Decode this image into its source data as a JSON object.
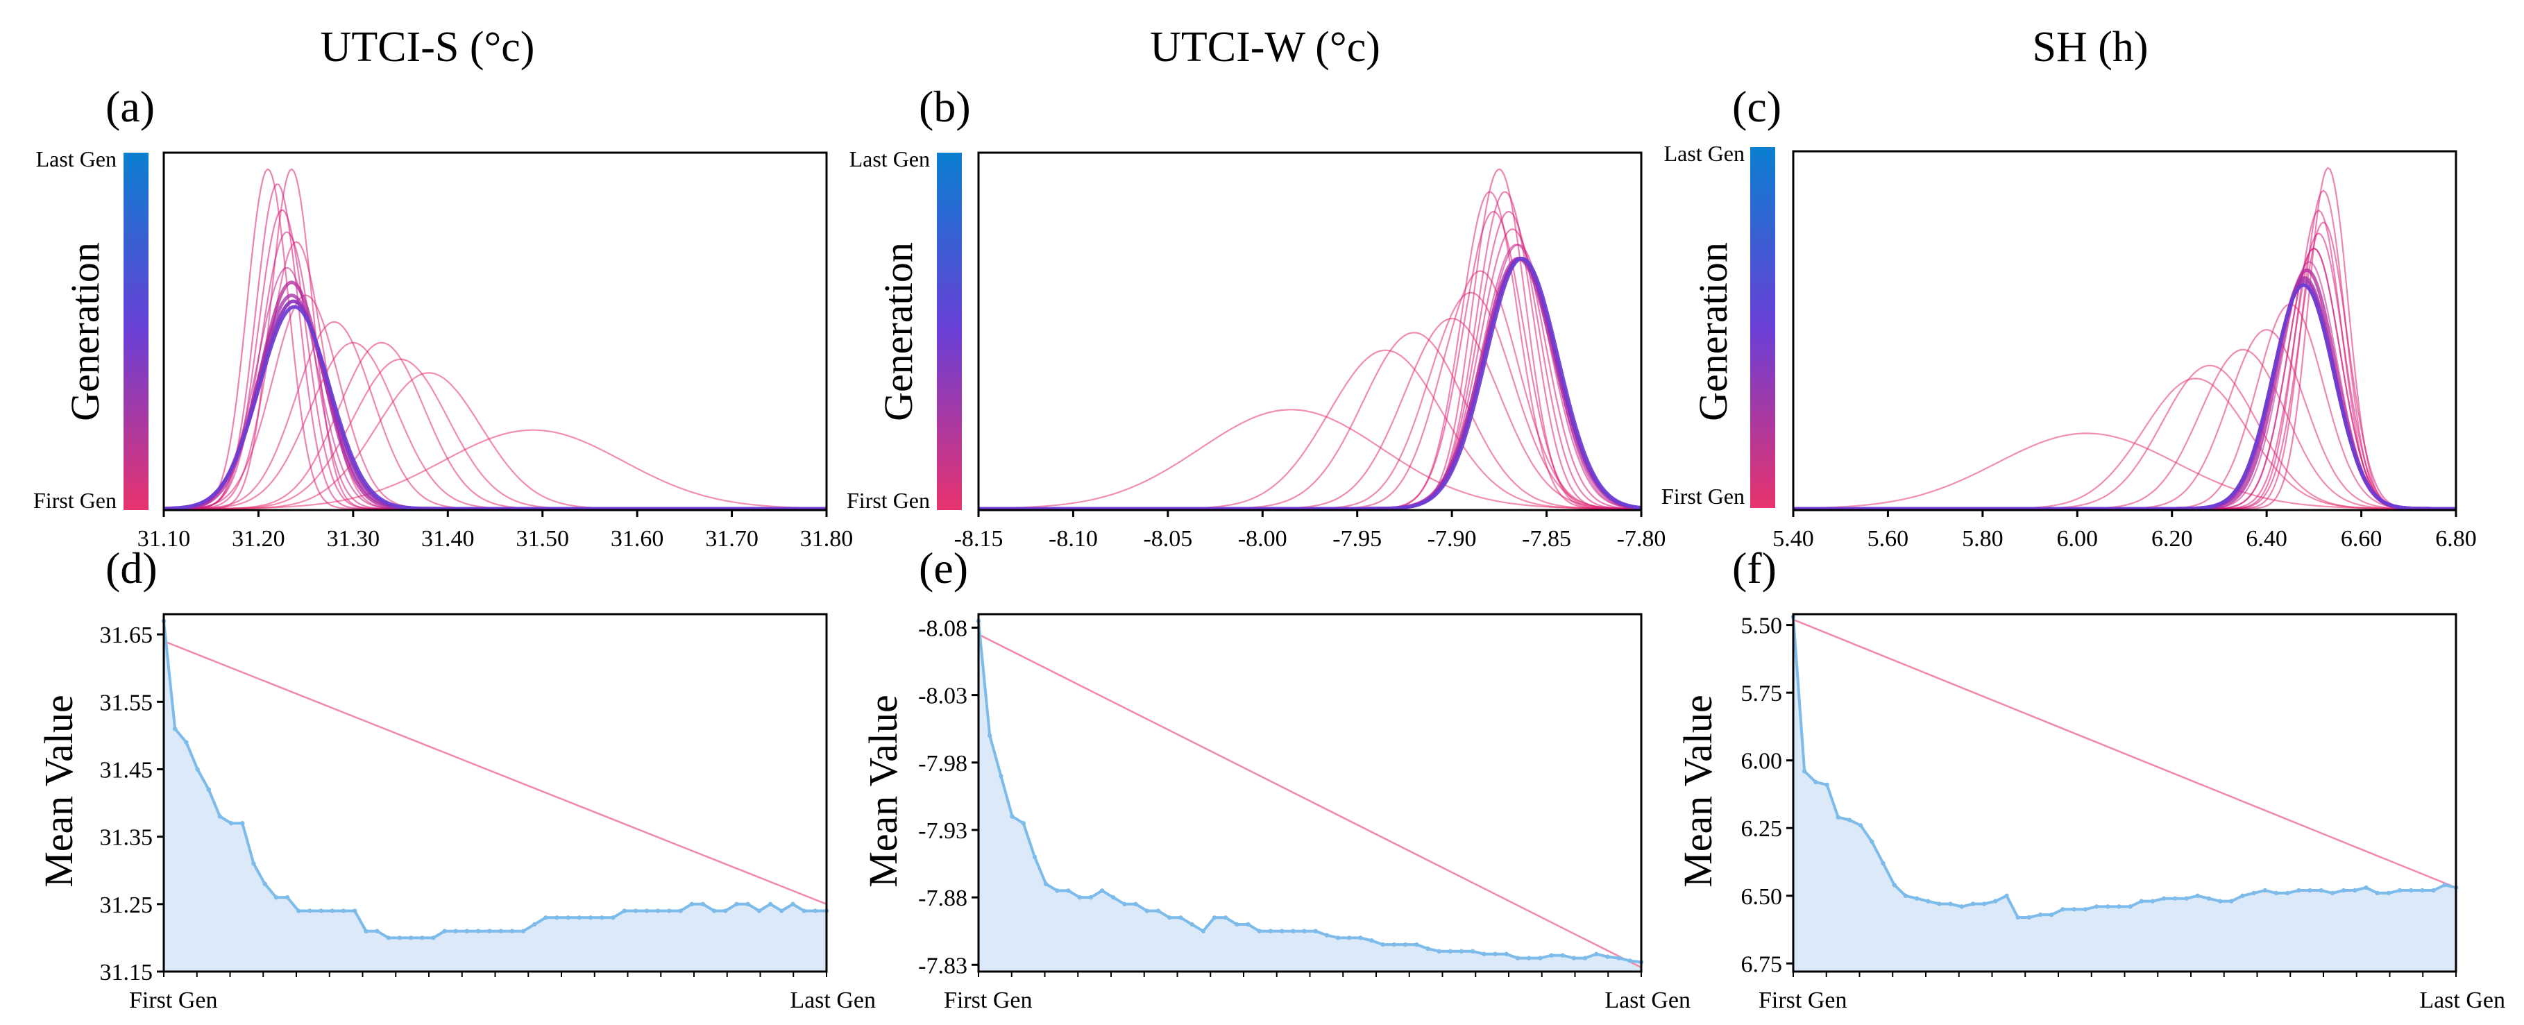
{
  "colors": {
    "first_gen": "#e8336d",
    "mid_gen": "#6a3fd6",
    "last_gen": "#0a7fd0",
    "mean_line": "#7dbbea",
    "mean_fill": "#dbe9f8",
    "trend_line": "#f08aa6"
  },
  "chart_data": [
    {
      "type": "line",
      "panel": "(a)",
      "title": "UTCI-S (°c)",
      "ylabel": "Generation",
      "colorbar": {
        "top_label": "Last Gen",
        "bottom_label": "First Gen"
      },
      "xlim": [
        31.1,
        31.8
      ],
      "x_ticks": [
        "31.10",
        "31.20",
        "31.30",
        "31.40",
        "31.50",
        "31.60",
        "31.70",
        "31.80"
      ],
      "series_description": "density curves per generation (normal distributions)",
      "generations": [
        {
          "gen": 1,
          "mean": 31.49,
          "sd": 0.095
        },
        {
          "gen": 2,
          "mean": 31.38,
          "sd": 0.055
        },
        {
          "gen": 3,
          "mean": 31.35,
          "sd": 0.05
        },
        {
          "gen": 4,
          "mean": 31.33,
          "sd": 0.045
        },
        {
          "gen": 5,
          "mean": 31.3,
          "sd": 0.045
        },
        {
          "gen": 6,
          "mean": 31.28,
          "sd": 0.04
        },
        {
          "gen": 7,
          "mean": 31.25,
          "sd": 0.035
        },
        {
          "gen": 8,
          "mean": 31.24,
          "sd": 0.028
        },
        {
          "gen": 9,
          "mean": 31.235,
          "sd": 0.022
        },
        {
          "gen": 10,
          "mean": 31.21,
          "sd": 0.022
        },
        {
          "gen": 11,
          "mean": 31.22,
          "sd": 0.023
        },
        {
          "gen": 12,
          "mean": 31.225,
          "sd": 0.025
        },
        {
          "gen": 13,
          "mean": 31.23,
          "sd": 0.027
        },
        {
          "gen": 14,
          "mean": 31.23,
          "sd": 0.031
        },
        {
          "gen": 15,
          "mean": 31.235,
          "sd": 0.033
        },
        {
          "gen": 16,
          "mean": 31.235,
          "sd": 0.035
        },
        {
          "gen": 17,
          "mean": 31.237,
          "sd": 0.036
        },
        {
          "gen": 18,
          "mean": 31.237,
          "sd": 0.036
        },
        {
          "gen": 19,
          "mean": 31.238,
          "sd": 0.037
        },
        {
          "gen": 20,
          "mean": 31.238,
          "sd": 0.037
        }
      ]
    },
    {
      "type": "line",
      "panel": "(b)",
      "title": "UTCI-W (°c)",
      "ylabel": "Generation",
      "colorbar": {
        "top_label": "Last Gen",
        "bottom_label": "First Gen"
      },
      "xlim": [
        -8.15,
        -7.8
      ],
      "x_ticks": [
        "-8.15",
        "-8.10",
        "-8.05",
        "-8.00",
        "-7.95",
        "-7.90",
        "-7.85",
        "-7.80"
      ],
      "series_description": "density curves per generation (normal distributions)",
      "generations": [
        {
          "gen": 1,
          "mean": -7.985,
          "sd": 0.048
        },
        {
          "gen": 2,
          "mean": -7.935,
          "sd": 0.03
        },
        {
          "gen": 3,
          "mean": -7.92,
          "sd": 0.027
        },
        {
          "gen": 4,
          "mean": -7.9,
          "sd": 0.025
        },
        {
          "gen": 5,
          "mean": -7.89,
          "sd": 0.022
        },
        {
          "gen": 6,
          "mean": -7.885,
          "sd": 0.02
        },
        {
          "gen": 7,
          "mean": -7.88,
          "sd": 0.015
        },
        {
          "gen": 8,
          "mean": -7.875,
          "sd": 0.014
        },
        {
          "gen": 9,
          "mean": -7.872,
          "sd": 0.015
        },
        {
          "gen": 10,
          "mean": -7.878,
          "sd": 0.016
        },
        {
          "gen": 11,
          "mean": -7.87,
          "sd": 0.016
        },
        {
          "gen": 12,
          "mean": -7.868,
          "sd": 0.017
        },
        {
          "gen": 13,
          "mean": -7.866,
          "sd": 0.018
        },
        {
          "gen": 14,
          "mean": -7.865,
          "sd": 0.018
        },
        {
          "gen": 15,
          "mean": -7.865,
          "sd": 0.019
        },
        {
          "gen": 16,
          "mean": -7.864,
          "sd": 0.019
        },
        {
          "gen": 17,
          "mean": -7.864,
          "sd": 0.019
        },
        {
          "gen": 18,
          "mean": -7.864,
          "sd": 0.019
        },
        {
          "gen": 19,
          "mean": -7.863,
          "sd": 0.019
        },
        {
          "gen": 20,
          "mean": -7.863,
          "sd": 0.019
        }
      ]
    },
    {
      "type": "line",
      "panel": "(c)",
      "title": "SH (h)",
      "ylabel": "Generation",
      "colorbar": {
        "top_label": "Last Gen",
        "bottom_label": "First Gen"
      },
      "xlim": [
        5.4,
        6.8
      ],
      "x_ticks": [
        "5.40",
        "5.60",
        "5.80",
        "6.00",
        "6.20",
        "6.40",
        "6.60",
        "6.80"
      ],
      "series_description": "density curves per generation (normal distributions)",
      "generations": [
        {
          "gen": 1,
          "mean": 6.02,
          "sd": 0.19
        },
        {
          "gen": 2,
          "mean": 6.25,
          "sd": 0.11
        },
        {
          "gen": 3,
          "mean": 6.28,
          "sd": 0.1
        },
        {
          "gen": 4,
          "mean": 6.35,
          "sd": 0.09
        },
        {
          "gen": 5,
          "mean": 6.4,
          "sd": 0.08
        },
        {
          "gen": 6,
          "mean": 6.45,
          "sd": 0.07
        },
        {
          "gen": 7,
          "mean": 6.5,
          "sd": 0.055
        },
        {
          "gen": 8,
          "mean": 6.52,
          "sd": 0.045
        },
        {
          "gen": 9,
          "mean": 6.53,
          "sd": 0.042
        },
        {
          "gen": 10,
          "mean": 6.51,
          "sd": 0.048
        },
        {
          "gen": 11,
          "mean": 6.52,
          "sd": 0.05
        },
        {
          "gen": 12,
          "mean": 6.51,
          "sd": 0.052
        },
        {
          "gen": 13,
          "mean": 6.5,
          "sd": 0.055
        },
        {
          "gen": 14,
          "mean": 6.49,
          "sd": 0.058
        },
        {
          "gen": 15,
          "mean": 6.485,
          "sd": 0.06
        },
        {
          "gen": 16,
          "mean": 6.48,
          "sd": 0.062
        },
        {
          "gen": 17,
          "mean": 6.48,
          "sd": 0.063
        },
        {
          "gen": 18,
          "mean": 6.478,
          "sd": 0.064
        },
        {
          "gen": 19,
          "mean": 6.478,
          "sd": 0.064
        },
        {
          "gen": 20,
          "mean": 6.478,
          "sd": 0.064
        }
      ]
    },
    {
      "type": "area",
      "panel": "(d)",
      "ylabel": "Mean Value",
      "xlabel_left": "First Gen",
      "xlabel_right": "Last Gen",
      "ylim": [
        31.15,
        31.68
      ],
      "y_ticks": [
        "31.65",
        "31.55",
        "31.45",
        "31.35",
        "31.25",
        "31.15"
      ],
      "trend_line": [
        31.64,
        31.25
      ],
      "mean_values": [
        31.67,
        31.51,
        31.49,
        31.45,
        31.42,
        31.38,
        31.37,
        31.37,
        31.31,
        31.28,
        31.26,
        31.26,
        31.24,
        31.24,
        31.24,
        31.24,
        31.24,
        31.24,
        31.21,
        31.21,
        31.2,
        31.2,
        31.2,
        31.2,
        31.2,
        31.21,
        31.21,
        31.21,
        31.21,
        31.21,
        31.21,
        31.21,
        31.21,
        31.22,
        31.23,
        31.23,
        31.23,
        31.23,
        31.23,
        31.23,
        31.23,
        31.24,
        31.24,
        31.24,
        31.24,
        31.24,
        31.24,
        31.25,
        31.25,
        31.24,
        31.24,
        31.25,
        31.25,
        31.24,
        31.25,
        31.24,
        31.25,
        31.24,
        31.24,
        31.24
      ]
    },
    {
      "type": "area",
      "panel": "(e)",
      "ylabel": "Mean Value",
      "xlabel_left": "First Gen",
      "xlabel_right": "Last Gen",
      "ylim": [
        -8.09,
        -7.825
      ],
      "y_ticks": [
        "-8.08",
        "-8.03",
        "-7.98",
        "-7.93",
        "-7.88",
        "-7.83"
      ],
      "trend_line": [
        -8.075,
        -7.828
      ],
      "mean_values": [
        -8.085,
        -8.0,
        -7.97,
        -7.94,
        -7.935,
        -7.91,
        -7.89,
        -7.885,
        -7.885,
        -7.88,
        -7.88,
        -7.885,
        -7.88,
        -7.875,
        -7.875,
        -7.87,
        -7.87,
        -7.865,
        -7.865,
        -7.86,
        -7.855,
        -7.865,
        -7.865,
        -7.86,
        -7.86,
        -7.855,
        -7.855,
        -7.855,
        -7.855,
        -7.855,
        -7.855,
        -7.852,
        -7.85,
        -7.85,
        -7.85,
        -7.848,
        -7.845,
        -7.845,
        -7.845,
        -7.845,
        -7.842,
        -7.84,
        -7.84,
        -7.84,
        -7.84,
        -7.838,
        -7.838,
        -7.838,
        -7.835,
        -7.835,
        -7.835,
        -7.837,
        -7.837,
        -7.835,
        -7.835,
        -7.838,
        -7.836,
        -7.835,
        -7.833,
        -7.832
      ]
    },
    {
      "type": "area",
      "panel": "(f)",
      "ylabel": "Mean Value",
      "xlabel_left": "First Gen",
      "xlabel_right": "Last Gen",
      "ylim": [
        5.46,
        6.78
      ],
      "y_ticks": [
        "5.50",
        "5.75",
        "6.00",
        "6.25",
        "6.50",
        "6.75"
      ],
      "trend_line": [
        5.48,
        6.47
      ],
      "mean_values": [
        5.47,
        6.04,
        6.08,
        6.09,
        6.21,
        6.22,
        6.24,
        6.3,
        6.38,
        6.46,
        6.5,
        6.51,
        6.52,
        6.53,
        6.53,
        6.54,
        6.53,
        6.53,
        6.52,
        6.5,
        6.58,
        6.58,
        6.57,
        6.57,
        6.55,
        6.55,
        6.55,
        6.54,
        6.54,
        6.54,
        6.54,
        6.52,
        6.52,
        6.51,
        6.51,
        6.51,
        6.5,
        6.51,
        6.52,
        6.52,
        6.5,
        6.49,
        6.48,
        6.49,
        6.49,
        6.48,
        6.48,
        6.48,
        6.49,
        6.48,
        6.48,
        6.47,
        6.49,
        6.49,
        6.48,
        6.48,
        6.48,
        6.48,
        6.46,
        6.47
      ]
    }
  ]
}
